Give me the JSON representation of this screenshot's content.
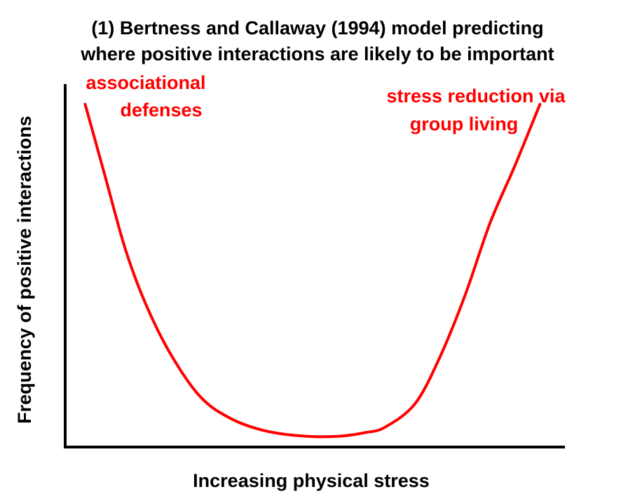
{
  "chart_data": {
    "type": "line",
    "title_lines": [
      "(1) Bertness and Callaway (1994) model predicting",
      "where positive interactions are likely to be important"
    ],
    "xlabel": "Increasing physical stress",
    "ylabel": "Frequency of positive interactions",
    "xlim": [
      0,
      100
    ],
    "ylim": [
      0,
      100
    ],
    "grid": false,
    "legend": "none",
    "series": [
      {
        "name": "positive interactions",
        "color": "#ff0000",
        "x": [
          4,
          8,
          12,
          16,
          21,
          27,
          33,
          40,
          48,
          55,
          60,
          64,
          70,
          75,
          80,
          85,
          90,
          95
        ],
        "y": [
          95,
          75,
          55,
          40,
          26,
          14,
          8,
          4.5,
          3,
          3,
          4,
          5.5,
          12,
          25,
          42,
          62,
          78,
          95
        ]
      }
    ],
    "annotations": [
      {
        "id": "associational-defenses",
        "lines": [
          "associational",
          "defenses"
        ],
        "color": "#ff0000",
        "placement": "top-left"
      },
      {
        "id": "stress-reduction",
        "lines": [
          "stress reduction via",
          "group living"
        ],
        "color": "#ff0000",
        "placement": "top-right"
      }
    ]
  }
}
